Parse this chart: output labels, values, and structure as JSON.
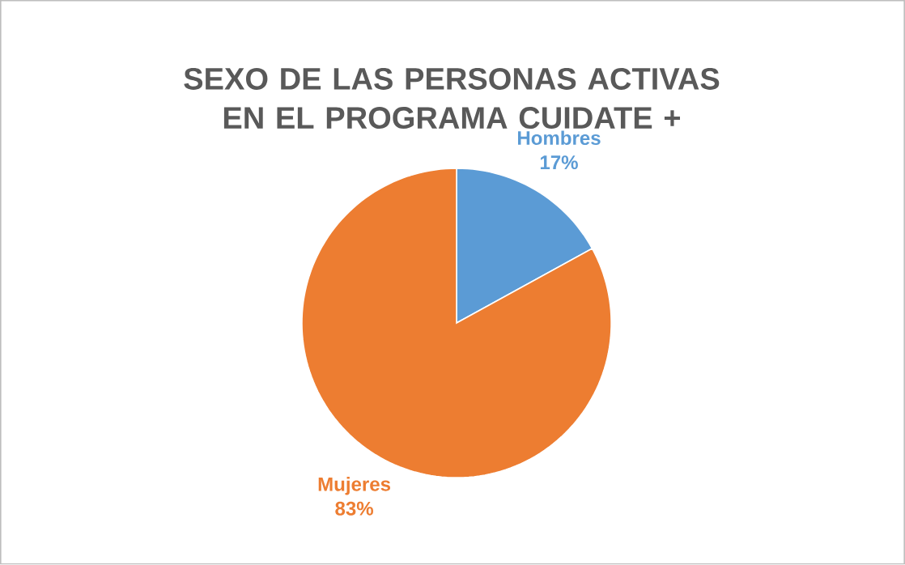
{
  "chart_data": {
    "type": "pie",
    "title": "SEXO DE LAS PERSONAS ACTIVAS EN EL PROGRAMA CUIDATE +",
    "categories": [
      "Hombres",
      "Mujeres"
    ],
    "values": [
      17,
      83
    ],
    "value_labels": [
      "17%",
      "83%"
    ],
    "colors": [
      "#5b9bd5",
      "#ed7d31"
    ]
  }
}
